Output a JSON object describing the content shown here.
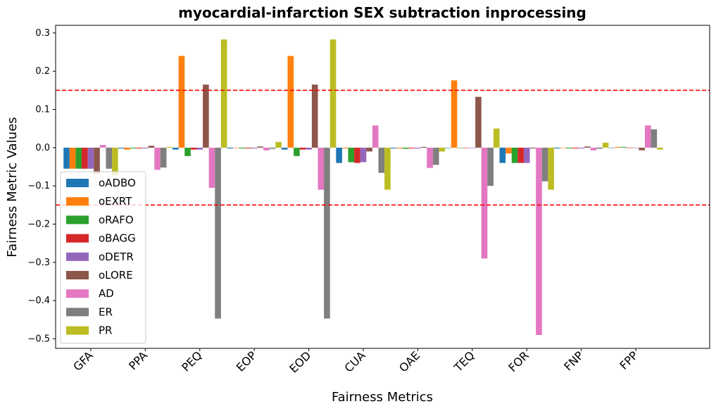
{
  "chart_data": {
    "type": "bar",
    "title": "myocardial-infarction SEX subtraction inprocessing",
    "xlabel": "Fairness Metrics",
    "ylabel": "Fairness Metric Values",
    "ylim": [
      -0.525,
      0.32
    ],
    "yticks": [
      -0.5,
      -0.4,
      -0.3,
      -0.2,
      -0.1,
      0.0,
      0.1,
      0.2,
      0.3
    ],
    "ytick_labels": [
      "−0.5",
      "−0.4",
      "−0.3",
      "−0.2",
      "−0.1",
      "0.0",
      "0.1",
      "0.2",
      "0.3"
    ],
    "categories": [
      "GFA",
      "PPA",
      "PEQ",
      "EOP",
      "EOD",
      "CUA",
      "OAE",
      "TEQ",
      "FOR",
      "FNP",
      "FPP"
    ],
    "reference_lines": [
      0.15,
      -0.15
    ],
    "reference_line_color": "#ff0000",
    "legend_position": "lower-left",
    "grid": false,
    "series": [
      {
        "name": "oADBO",
        "color": "#1f77b4",
        "values": [
          -0.055,
          -0.002,
          -0.005,
          -0.002,
          -0.005,
          -0.04,
          -0.002,
          0.0,
          -0.04,
          -0.002,
          0.0
        ]
      },
      {
        "name": "oEXRT",
        "color": "#ff7f0e",
        "values": [
          -0.055,
          -0.005,
          0.24,
          0.0,
          0.24,
          -0.002,
          -0.002,
          0.176,
          -0.015,
          0.0,
          0.002
        ]
      },
      {
        "name": "oRAFO",
        "color": "#2ca02c",
        "values": [
          -0.055,
          -0.002,
          -0.022,
          -0.002,
          -0.022,
          -0.038,
          -0.003,
          0.0,
          -0.04,
          -0.002,
          0.002
        ]
      },
      {
        "name": "oBAGG",
        "color": "#d62728",
        "values": [
          -0.055,
          -0.002,
          -0.005,
          -0.002,
          -0.005,
          -0.04,
          -0.002,
          0.0,
          -0.04,
          -0.002,
          0.0
        ]
      },
      {
        "name": "oDETR",
        "color": "#9467bd",
        "values": [
          -0.055,
          -0.002,
          -0.005,
          -0.002,
          -0.005,
          -0.038,
          -0.002,
          0.0,
          -0.04,
          -0.002,
          0.0
        ]
      },
      {
        "name": "oLORE",
        "color": "#8c564b",
        "values": [
          -0.068,
          0.005,
          0.165,
          0.003,
          0.165,
          -0.01,
          0.002,
          0.133,
          -0.002,
          0.003,
          -0.007
        ]
      },
      {
        "name": "AD",
        "color": "#e377c2",
        "values": [
          0.007,
          -0.058,
          -0.105,
          -0.007,
          -0.11,
          0.058,
          -0.053,
          -0.29,
          -0.49,
          -0.007,
          0.058
        ]
      },
      {
        "name": "ER",
        "color": "#7f7f7f",
        "values": [
          -0.055,
          -0.052,
          -0.447,
          -0.003,
          -0.447,
          -0.066,
          -0.045,
          -0.1,
          -0.088,
          -0.003,
          0.048
        ]
      },
      {
        "name": "PR",
        "color": "#bcbd22",
        "values": [
          -0.072,
          0.002,
          0.283,
          0.015,
          0.283,
          -0.11,
          -0.01,
          0.05,
          -0.11,
          0.013,
          -0.005
        ]
      }
    ]
  }
}
